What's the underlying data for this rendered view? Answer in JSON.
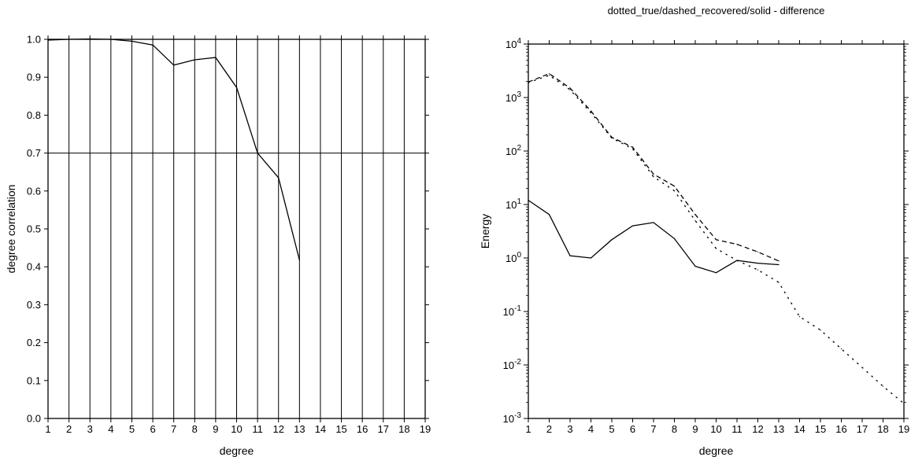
{
  "chart_data": [
    {
      "type": "line",
      "title": "",
      "xlabel": "degree",
      "ylabel": "degree correlation",
      "xlim": [
        1,
        19
      ],
      "ylim": [
        0,
        1
      ],
      "xticks": [
        1,
        2,
        3,
        4,
        5,
        6,
        7,
        8,
        9,
        10,
        11,
        12,
        13,
        14,
        15,
        16,
        17,
        18,
        19
      ],
      "yticks": [
        0.0,
        0.1,
        0.2,
        0.3,
        0.4,
        0.5,
        0.6,
        0.7,
        0.8,
        0.9,
        1.0
      ],
      "ytick_labels": [
        "0.0",
        "0.1",
        "0.2",
        "0.3",
        "0.4",
        "0.5",
        "0.6",
        "0.7",
        "0.8",
        "0.9",
        "1.0"
      ],
      "grid": "vertical",
      "reference_line": 0.7,
      "series": [
        {
          "style": "solid",
          "x": [
            1,
            2,
            3,
            4,
            5,
            6,
            7,
            8,
            9,
            10,
            11,
            12,
            13
          ],
          "y": [
            0.998,
            1.0,
            1.001,
            1.0,
            0.995,
            0.985,
            0.932,
            0.946,
            0.952,
            0.873,
            0.7,
            0.635,
            0.418
          ]
        }
      ]
    },
    {
      "type": "line",
      "title": "dotted_true/dashed_recovered/solid - difference",
      "xlabel": "degree",
      "ylabel": "Energy",
      "xlim": [
        1,
        19
      ],
      "ylim": [
        0.001,
        10000
      ],
      "yscale": "log",
      "xticks": [
        1,
        2,
        3,
        4,
        5,
        6,
        7,
        8,
        9,
        10,
        11,
        12,
        13,
        14,
        15,
        16,
        17,
        18,
        19
      ],
      "ytick_exponents": [
        "-3",
        "-2",
        "-1",
        "0",
        "1",
        "2",
        "3",
        "4"
      ],
      "ytick_base": "10",
      "grid": "none",
      "series": [
        {
          "style": "dotted",
          "x": [
            1,
            2,
            3,
            4,
            5,
            6,
            7,
            8,
            9,
            10,
            11,
            12,
            13,
            14,
            15,
            16,
            17,
            18,
            19
          ],
          "y": [
            1900,
            2600,
            1400,
            520,
            175,
            110,
            33,
            18,
            5,
            1.5,
            0.9,
            0.6,
            0.35,
            0.08,
            0.045,
            0.02,
            0.009,
            0.004,
            0.0019
          ]
        },
        {
          "style": "dashed",
          "x": [
            1,
            2,
            3,
            4,
            5,
            6,
            7,
            8,
            9,
            10,
            11,
            12,
            13
          ],
          "y": [
            1950,
            2800,
            1500,
            560,
            180,
            118,
            37,
            22,
            6.5,
            2.2,
            1.8,
            1.3,
            0.88
          ]
        },
        {
          "style": "solid",
          "x": [
            1,
            2,
            3,
            4,
            5,
            6,
            7,
            8,
            9,
            10,
            11,
            12,
            13
          ],
          "y": [
            12,
            6.5,
            1.1,
            1.0,
            2.2,
            4.0,
            4.6,
            2.3,
            0.7,
            0.53,
            0.9,
            0.8,
            0.75
          ]
        }
      ]
    }
  ]
}
